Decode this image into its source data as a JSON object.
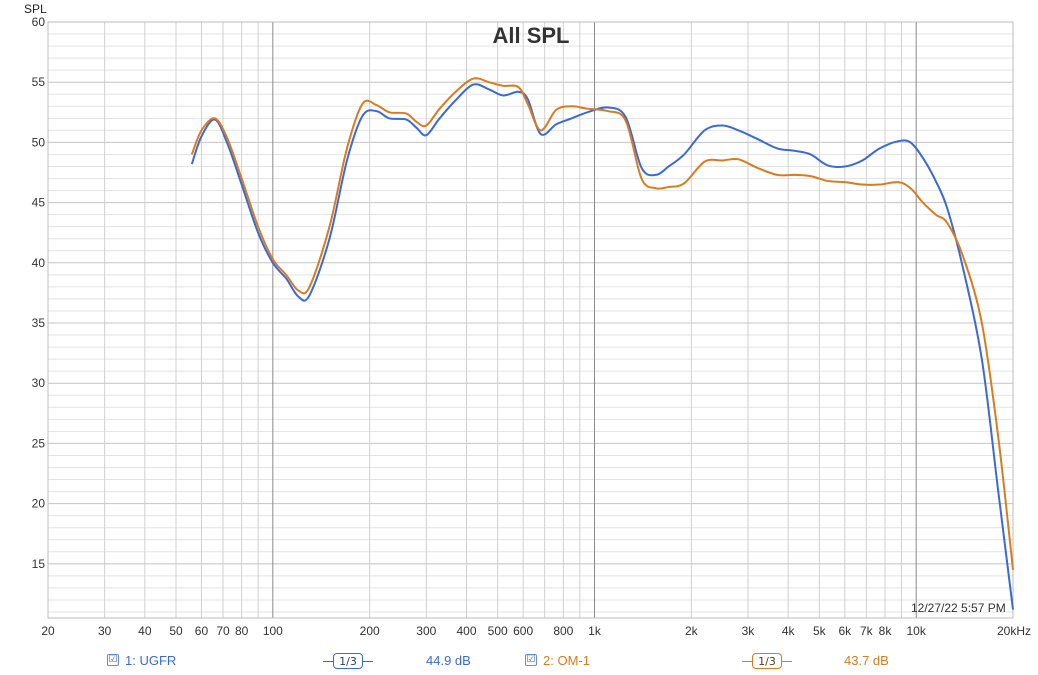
{
  "chart_data": {
    "type": "line",
    "title": "All SPL",
    "ylabel": "SPL",
    "xlabel": "",
    "x_scale": "log",
    "xlim": [
      20,
      20000
    ],
    "ylim": [
      10.5,
      60
    ],
    "yticks": [
      15,
      20,
      25,
      30,
      35,
      40,
      45,
      50,
      55,
      60
    ],
    "xtick_values": [
      20,
      30,
      40,
      50,
      60,
      70,
      80,
      100,
      200,
      300,
      400,
      500,
      600,
      800,
      1000,
      2000,
      3000,
      4000,
      5000,
      6000,
      7000,
      8000,
      10000,
      20000
    ],
    "xtick_labels": [
      "20",
      "30",
      "40",
      "50",
      "60",
      "70",
      "80",
      "100",
      "200",
      "300",
      "400",
      "500",
      "600",
      "800",
      "1k",
      "2k",
      "3k",
      "4k",
      "5k",
      "6k",
      "7k",
      "8k",
      "10k",
      "20kHz"
    ],
    "grid": true,
    "series": [
      {
        "name": "1: UGFR",
        "color": "#3a6ad6",
        "smoothing": "1/3",
        "level": "44.9 dB",
        "x": [
          56,
          60,
          66,
          72,
          80,
          90,
          100,
          110,
          120,
          130,
          150,
          170,
          190,
          210,
          230,
          260,
          280,
          300,
          330,
          370,
          420,
          470,
          520,
          580,
          620,
          680,
          760,
          850,
          950,
          1100,
          1250,
          1400,
          1550,
          1700,
          1900,
          2200,
          2500,
          2800,
          3200,
          3700,
          4200,
          4700,
          5300,
          6000,
          6800,
          7700,
          8800,
          9600,
          10500,
          11500,
          12500,
          14000,
          16000,
          18000,
          20000
        ],
        "y": [
          48.2,
          50.5,
          51.9,
          50.0,
          46.5,
          42.5,
          40.0,
          38.7,
          37.2,
          37.3,
          42.0,
          48.5,
          52.2,
          52.6,
          52.0,
          51.9,
          51.2,
          50.6,
          52.0,
          53.5,
          54.8,
          54.4,
          53.9,
          54.2,
          53.6,
          50.7,
          51.5,
          52.0,
          52.5,
          52.9,
          52.1,
          47.9,
          47.3,
          48.0,
          49.0,
          51.0,
          51.4,
          51.0,
          50.3,
          49.5,
          49.3,
          49.0,
          48.1,
          48.0,
          48.5,
          49.5,
          50.1,
          50.0,
          48.7,
          46.8,
          44.5,
          39.5,
          32.0,
          21.0,
          11.2
        ]
      },
      {
        "name": "2: OM-1",
        "color": "#d97b1e",
        "smoothing": "1/3",
        "level": "43.7 dB",
        "x": [
          56,
          60,
          66,
          72,
          80,
          90,
          100,
          110,
          120,
          130,
          150,
          170,
          190,
          210,
          230,
          260,
          280,
          300,
          330,
          370,
          420,
          470,
          520,
          580,
          620,
          680,
          760,
          850,
          950,
          1100,
          1250,
          1400,
          1550,
          1700,
          1900,
          2200,
          2500,
          2800,
          3200,
          3700,
          4200,
          4700,
          5300,
          6000,
          6800,
          7700,
          8800,
          9600,
          10500,
          11500,
          12500,
          14000,
          16000,
          18000,
          20000
        ],
        "y": [
          49.0,
          51.0,
          52.0,
          50.4,
          47.0,
          43.0,
          40.3,
          39.0,
          37.7,
          38.0,
          43.0,
          49.5,
          53.2,
          53.1,
          52.5,
          52.4,
          51.7,
          51.4,
          52.8,
          54.2,
          55.3,
          55.0,
          54.7,
          54.6,
          53.2,
          51.0,
          52.7,
          53.0,
          52.8,
          52.6,
          51.8,
          47.0,
          46.2,
          46.3,
          46.6,
          48.4,
          48.5,
          48.6,
          47.9,
          47.3,
          47.3,
          47.2,
          46.8,
          46.7,
          46.5,
          46.5,
          46.7,
          46.2,
          45.0,
          44.0,
          43.3,
          40.5,
          35.0,
          25.5,
          14.5
        ]
      }
    ],
    "annotations": [
      "12/27/22 5:57 PM"
    ],
    "legend_placement": "bottom"
  },
  "legend": {
    "series1": {
      "check": "☑",
      "label": "1: UGFR",
      "smoothing": "1/3",
      "level": "44.9 dB"
    },
    "series2": {
      "check": "☑",
      "label": "2: OM-1",
      "smoothing": "1/3",
      "level": "43.7 dB"
    }
  },
  "timestamp": "12/27/22 5:57 PM",
  "colors": {
    "series1": "#3a6ad6",
    "series2": "#d97b1e",
    "grid_minor": "#d8d8d8",
    "grid_major": "#8a8a8a"
  }
}
